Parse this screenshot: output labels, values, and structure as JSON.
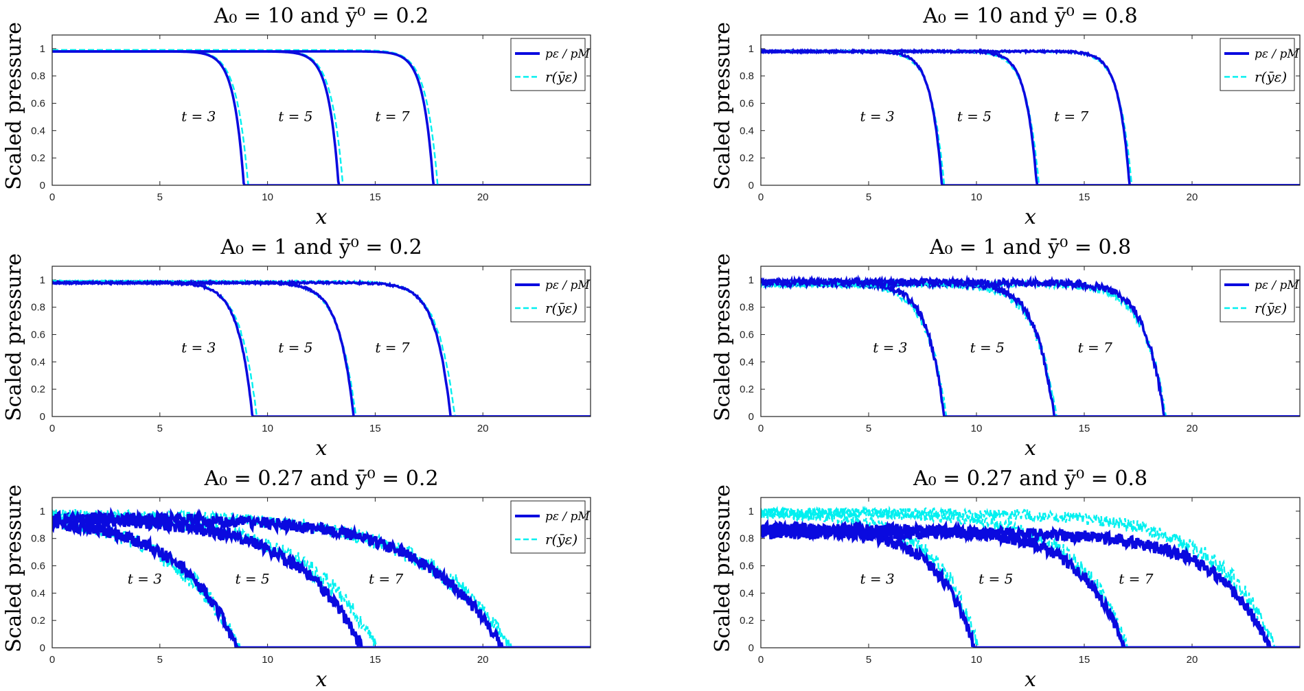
{
  "colors": {
    "pressure": "#0a0adf",
    "r": "#00f0f0",
    "axis": "#222222"
  },
  "chart_data": [
    {
      "type": "line",
      "title": "A₀ = 10 and ȳ⁰ = 0.2",
      "xlabel": "x",
      "ylabel": "Scaled pressure",
      "xlim": [
        0,
        25
      ],
      "ylim": [
        0,
        1.1
      ],
      "xticks": [
        "0",
        "5",
        "10",
        "15",
        "20"
      ],
      "yticks": [
        "0",
        "0.2",
        "0.4",
        "0.6",
        "0.8",
        "1"
      ],
      "legend": {
        "position": "top-right",
        "entries": [
          "pε / pM",
          "r(ȳε)"
        ]
      },
      "noise": 0,
      "annotations": [
        {
          "label": "t = 3",
          "x": 6.8,
          "y": 0.5
        },
        {
          "label": "t = 5",
          "x": 11.3,
          "y": 0.5
        },
        {
          "label": "t = 7",
          "x": 15.8,
          "y": 0.5
        }
      ],
      "series": [
        {
          "name": "t = 3",
          "front": 8.9,
          "width": 1.2,
          "plateau": 0.98,
          "r_front": 9.1,
          "r_plateau": 0.99
        },
        {
          "name": "t = 5",
          "front": 13.3,
          "width": 1.2,
          "plateau": 0.98,
          "r_front": 13.5,
          "r_plateau": 0.99
        },
        {
          "name": "t = 7",
          "front": 17.7,
          "width": 1.2,
          "plateau": 0.98,
          "r_front": 17.9,
          "r_plateau": 0.99
        }
      ]
    },
    {
      "type": "line",
      "title": "A₀ = 10 and ȳ⁰ = 0.8",
      "xlabel": "x",
      "ylabel": "Scaled pressure",
      "xlim": [
        0,
        25
      ],
      "ylim": [
        0,
        1.1
      ],
      "xticks": [
        "0",
        "5",
        "10",
        "15",
        "20"
      ],
      "yticks": [
        "0",
        "0.2",
        "0.4",
        "0.6",
        "0.8",
        "1"
      ],
      "legend": {
        "position": "top-right",
        "entries": [
          "pε / pM",
          "r(ȳε)"
        ]
      },
      "noise": 0.01,
      "annotations": [
        {
          "label": "t = 3",
          "x": 5.4,
          "y": 0.5
        },
        {
          "label": "t = 5",
          "x": 9.9,
          "y": 0.5
        },
        {
          "label": "t = 7",
          "x": 14.4,
          "y": 0.5
        }
      ],
      "series": [
        {
          "name": "t = 3",
          "front": 8.4,
          "width": 1.3,
          "plateau": 0.98,
          "r_front": 8.5,
          "r_plateau": 0.98
        },
        {
          "name": "t = 5",
          "front": 12.8,
          "width": 1.3,
          "plateau": 0.98,
          "r_front": 12.9,
          "r_plateau": 0.98
        },
        {
          "name": "t = 7",
          "front": 17.1,
          "width": 1.3,
          "plateau": 0.98,
          "r_front": 17.2,
          "r_plateau": 0.98
        }
      ]
    },
    {
      "type": "line",
      "title": "A₀ = 1 and ȳ⁰ = 0.2",
      "xlabel": "x",
      "ylabel": "Scaled pressure",
      "xlim": [
        0,
        25
      ],
      "ylim": [
        0,
        1.1
      ],
      "xticks": [
        "0",
        "5",
        "10",
        "15",
        "20"
      ],
      "yticks": [
        "0",
        "0.2",
        "0.4",
        "0.6",
        "0.8",
        "1"
      ],
      "legend": {
        "position": "top-right",
        "entries": [
          "pε / pM",
          "r(ȳε)"
        ]
      },
      "noise": 0.01,
      "annotations": [
        {
          "label": "t = 3",
          "x": 6.8,
          "y": 0.5
        },
        {
          "label": "t = 5",
          "x": 11.3,
          "y": 0.5
        },
        {
          "label": "t = 7",
          "x": 15.8,
          "y": 0.5
        }
      ],
      "series": [
        {
          "name": "t = 3",
          "front": 9.3,
          "width": 1.7,
          "plateau": 0.98,
          "r_front": 9.5,
          "r_plateau": 0.99
        },
        {
          "name": "t = 5",
          "front": 14.0,
          "width": 1.8,
          "plateau": 0.98,
          "r_front": 14.1,
          "r_plateau": 0.99
        },
        {
          "name": "t = 7",
          "front": 18.5,
          "width": 1.8,
          "plateau": 0.98,
          "r_front": 18.7,
          "r_plateau": 0.99
        }
      ]
    },
    {
      "type": "line",
      "title": "A₀ = 1 and ȳ⁰ = 0.8",
      "xlabel": "x",
      "ylabel": "Scaled pressure",
      "xlim": [
        0,
        25
      ],
      "ylim": [
        0,
        1.1
      ],
      "xticks": [
        "0",
        "5",
        "10",
        "15",
        "20"
      ],
      "yticks": [
        "0",
        "0.2",
        "0.4",
        "0.6",
        "0.8",
        "1"
      ],
      "legend": {
        "position": "top-right",
        "entries": [
          "pε / pM",
          "r(ȳε)"
        ]
      },
      "noise": 0.04,
      "annotations": [
        {
          "label": "t = 3",
          "x": 6.0,
          "y": 0.5
        },
        {
          "label": "t = 5",
          "x": 10.5,
          "y": 0.5
        },
        {
          "label": "t = 7",
          "x": 15.5,
          "y": 0.5
        }
      ],
      "series": [
        {
          "name": "t = 3",
          "front": 8.5,
          "width": 2.0,
          "plateau": 0.98,
          "r_front": 8.6,
          "r_plateau": 0.97
        },
        {
          "name": "t = 5",
          "front": 13.6,
          "width": 2.2,
          "plateau": 0.98,
          "r_front": 13.7,
          "r_plateau": 0.97
        },
        {
          "name": "t = 7",
          "front": 18.7,
          "width": 2.3,
          "plateau": 0.98,
          "r_front": 18.8,
          "r_plateau": 0.97
        }
      ]
    },
    {
      "type": "line",
      "title": "A₀ = 0.27 and ȳ⁰ = 0.2",
      "xlabel": "x",
      "ylabel": "Scaled pressure",
      "xlim": [
        0,
        25
      ],
      "ylim": [
        0,
        1.1
      ],
      "xticks": [
        "0",
        "5",
        "10",
        "15",
        "20"
      ],
      "yticks": [
        "0",
        "0.2",
        "0.4",
        "0.6",
        "0.8",
        "1"
      ],
      "legend": {
        "position": "top-right",
        "entries": [
          "pε / pM",
          "r(ȳε)"
        ]
      },
      "noise": 0.07,
      "annotations": [
        {
          "label": "t = 3",
          "x": 4.3,
          "y": 0.5
        },
        {
          "label": "t = 5",
          "x": 9.3,
          "y": 0.5
        },
        {
          "label": "t = 7",
          "x": 15.5,
          "y": 0.5
        }
      ],
      "series": [
        {
          "name": "t = 3",
          "front": 8.6,
          "width": 7.0,
          "plateau": 0.95,
          "r_front": 8.7,
          "r_plateau": 0.98
        },
        {
          "name": "t = 5",
          "front": 14.4,
          "width": 8.0,
          "plateau": 0.95,
          "r_front": 15.1,
          "r_plateau": 0.98
        },
        {
          "name": "t = 7",
          "front": 20.9,
          "width": 9.0,
          "plateau": 0.95,
          "r_front": 21.3,
          "r_plateau": 0.98
        }
      ]
    },
    {
      "type": "line",
      "title": "A₀ = 0.27 and ȳ⁰ = 0.8",
      "xlabel": "x",
      "ylabel": "Scaled pressure",
      "xlim": [
        0,
        25
      ],
      "ylim": [
        0,
        1.1
      ],
      "xticks": [
        "0",
        "5",
        "10",
        "15",
        "20"
      ],
      "yticks": [
        "0",
        "0.2",
        "0.4",
        "0.6",
        "0.8",
        "1"
      ],
      "legend": null,
      "noise": 0.07,
      "annotations": [
        {
          "label": "t = 3",
          "x": 5.4,
          "y": 0.5
        },
        {
          "label": "t = 5",
          "x": 10.9,
          "y": 0.5
        },
        {
          "label": "t = 7",
          "x": 17.4,
          "y": 0.5
        }
      ],
      "series": [
        {
          "name": "t = 3",
          "front": 9.9,
          "width": 4.5,
          "plateau": 0.87,
          "r_front": 10.1,
          "r_plateau": 0.99
        },
        {
          "name": "t = 5",
          "front": 16.9,
          "width": 5.5,
          "plateau": 0.87,
          "r_front": 17.0,
          "r_plateau": 0.99
        },
        {
          "name": "t = 7",
          "front": 23.6,
          "width": 6.5,
          "plateau": 0.84,
          "r_front": 23.9,
          "r_plateau": 0.99
        }
      ]
    }
  ]
}
